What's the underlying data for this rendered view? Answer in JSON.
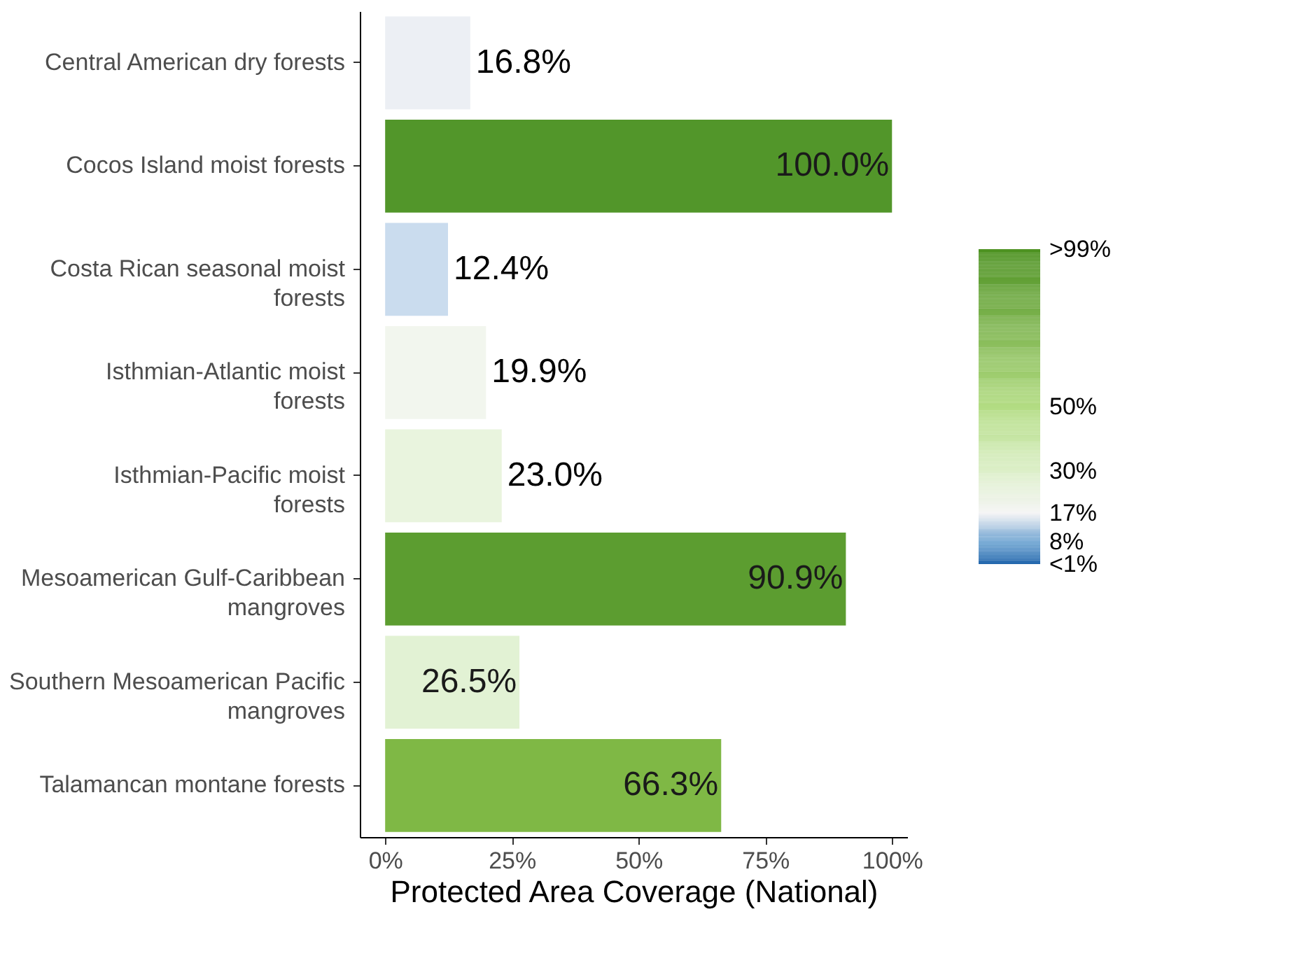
{
  "chart_data": {
    "type": "bar",
    "orientation": "horizontal",
    "xlabel": "Protected Area Coverage (National)",
    "categories": [
      "Central American dry forests",
      "Cocos Island moist forests",
      "Costa Rican seasonal moist forests",
      "Isthmian-Atlantic moist forests",
      "Isthmian-Pacific moist forests",
      "Mesoamerican Gulf-Caribbean mangroves",
      "Southern Mesoamerican Pacific mangroves",
      "Talamancan montane forests"
    ],
    "values": [
      16.8,
      100.0,
      12.4,
      19.9,
      23.0,
      90.9,
      26.5,
      66.3
    ],
    "value_labels": [
      "16.8%",
      "100.0%",
      "12.4%",
      "19.9%",
      "23.0%",
      "90.9%",
      "26.5%",
      "66.3%"
    ],
    "colors": [
      "#eceff4",
      "#52962a",
      "#cadcee",
      "#f2f6ee",
      "#e9f4de",
      "#5c9d30",
      "#e2f2d4",
      "#7fb845"
    ],
    "xlim": [
      -5,
      103
    ],
    "xticks": [
      {
        "value": 0,
        "label": "0%"
      },
      {
        "value": 25,
        "label": "25%"
      },
      {
        "value": 50,
        "label": "50%"
      },
      {
        "value": 75,
        "label": "75%"
      },
      {
        "value": 100,
        "label": "100%"
      }
    ],
    "clim": [
      1,
      99
    ],
    "cticks": [
      {
        "value": 99,
        "label": ">99%"
      },
      {
        "value": 50,
        "label": "50%"
      },
      {
        "value": 30,
        "label": "30%"
      },
      {
        "value": 17,
        "label": "17%"
      },
      {
        "value": 8,
        "label": "8%"
      },
      {
        "value": 1,
        "label": "<1%"
      }
    ],
    "grid": false
  }
}
